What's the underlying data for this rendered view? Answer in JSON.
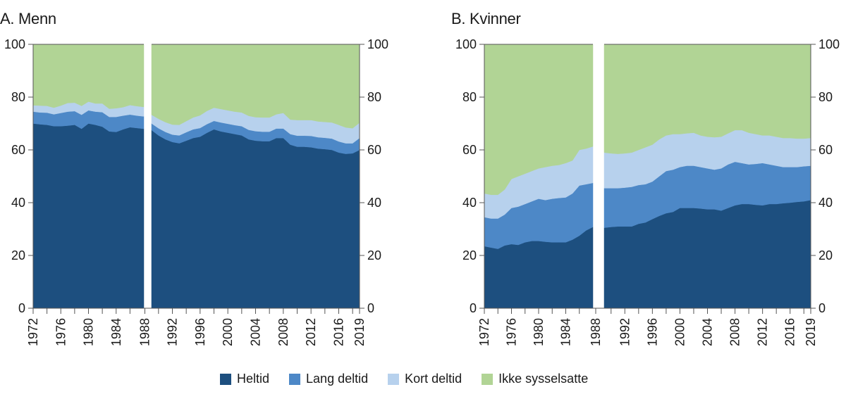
{
  "chart_data": [
    {
      "type": "area",
      "stacked": true,
      "title": "A. Menn",
      "xlabel": "",
      "ylabel": "",
      "ylim": [
        0,
        100
      ],
      "yticks": [
        0,
        20,
        40,
        60,
        80,
        100
      ],
      "xticks": [
        "1972",
        "1976",
        "1980",
        "1984",
        "1988",
        "1992",
        "1996",
        "2000",
        "2004",
        "2008",
        "2012",
        "2016",
        "2019"
      ],
      "xrange": [
        1972,
        2019
      ],
      "break_at": 1988,
      "grid": false,
      "segments": [
        {
          "x": [
            1972,
            1973,
            1974,
            1975,
            1976,
            1977,
            1978,
            1979,
            1980,
            1981,
            1982,
            1983,
            1984,
            1985,
            1986,
            1987,
            1988
          ],
          "series": [
            {
              "name": "Heltid",
              "values": [
                70,
                69.7,
                69.5,
                69,
                69,
                69.2,
                69.5,
                68,
                70,
                69.5,
                68.8,
                67,
                66.8,
                67.8,
                68.6,
                68.3,
                68
              ]
            },
            {
              "name": "Lang deltid",
              "values": [
                4.5,
                4.5,
                4.6,
                4.5,
                5,
                5.3,
                5.2,
                5.3,
                5,
                5,
                5.5,
                5.5,
                5.7,
                5.2,
                4.8,
                4.7,
                4.7
              ]
            },
            {
              "name": "Kort deltid",
              "values": [
                2.4,
                2.6,
                2.6,
                2.5,
                2.8,
                3.3,
                3.2,
                3.4,
                3.3,
                3.1,
                3.3,
                3.1,
                3.3,
                3.2,
                3.6,
                3.6,
                3.6
              ]
            },
            {
              "name": "Ikke sysselsatte",
              "values": [
                23.1,
                23.2,
                23.3,
                24,
                23.2,
                22.2,
                22.1,
                23.3,
                21.7,
                22.4,
                22.4,
                24.4,
                24.2,
                23.8,
                23,
                23.4,
                23.7
              ]
            }
          ]
        },
        {
          "x": [
            1989,
            1990,
            1991,
            1992,
            1993,
            1994,
            1995,
            1996,
            1997,
            1998,
            1999,
            2000,
            2001,
            2002,
            2003,
            2004,
            2005,
            2006,
            2007,
            2008,
            2009,
            2010,
            2011,
            2012,
            2013,
            2014,
            2015,
            2016,
            2017,
            2018,
            2019
          ],
          "series": [
            {
              "name": "Heltid",
              "values": [
                67.5,
                65.5,
                64,
                63,
                62.5,
                63.5,
                64.5,
                65,
                66.5,
                67.8,
                67,
                66.5,
                66,
                65.5,
                64,
                63.5,
                63.3,
                63.3,
                64.5,
                64.5,
                62,
                61.2,
                61.2,
                61,
                60.5,
                60.3,
                60,
                59,
                58.5,
                58.7,
                60
              ]
            },
            {
              "name": "Lang deltid",
              "values": [
                2.5,
                2.7,
                2.8,
                2.8,
                3,
                3.2,
                3.3,
                3.3,
                3.3,
                3.2,
                3.4,
                3.4,
                3.4,
                3.5,
                3.6,
                3.6,
                3.6,
                3.6,
                3.6,
                3.6,
                4,
                4.2,
                4.2,
                4.3,
                4.3,
                4.3,
                4.3,
                4.2,
                4,
                3.8,
                4.5
              ]
            },
            {
              "name": "Kort deltid",
              "values": [
                3.3,
                3.6,
                3.7,
                3.8,
                4,
                4.2,
                4.5,
                4.8,
                5,
                5,
                5.1,
                5.1,
                5.1,
                5.2,
                5.3,
                5.3,
                5.4,
                5.4,
                5.4,
                5.9,
                5.5,
                5.9,
                5.9,
                6,
                6,
                6,
                6.1,
                6.3,
                6,
                5.7,
                5.8
              ]
            },
            {
              "name": "Ikke sysselsatte",
              "values": [
                26.7,
                28.2,
                29.5,
                30.4,
                30.5,
                29.1,
                27.7,
                26.9,
                25.2,
                24,
                24.5,
                25,
                25.5,
                25.8,
                27.1,
                27.6,
                27.7,
                27.7,
                26.5,
                26,
                28.5,
                28.7,
                28.7,
                28.7,
                29.2,
                29.4,
                29.6,
                30.5,
                31.5,
                31.8,
                29.7
              ]
            }
          ]
        }
      ]
    },
    {
      "type": "area",
      "stacked": true,
      "title": "B. Kvinner",
      "xlabel": "",
      "ylabel": "",
      "ylim": [
        0,
        100
      ],
      "yticks": [
        0,
        20,
        40,
        60,
        80,
        100
      ],
      "xticks": [
        "1972",
        "1976",
        "1980",
        "1984",
        "1988",
        "1992",
        "1996",
        "2000",
        "2004",
        "2008",
        "2012",
        "2016",
        "2019"
      ],
      "xrange": [
        1972,
        2019
      ],
      "break_at": 1988,
      "grid": false,
      "segments": [
        {
          "x": [
            1972,
            1973,
            1974,
            1975,
            1976,
            1977,
            1978,
            1979,
            1980,
            1981,
            1982,
            1983,
            1984,
            1985,
            1986,
            1987,
            1988
          ],
          "series": [
            {
              "name": "Heltid",
              "values": [
                23.5,
                23,
                22.5,
                23.8,
                24.3,
                24,
                25,
                25.5,
                25.5,
                25.2,
                25,
                25,
                25,
                26,
                27.5,
                29.5,
                30.8
              ]
            },
            {
              "name": "Lang deltid",
              "values": [
                11,
                11,
                11.5,
                11.7,
                13.7,
                14.5,
                14.5,
                15,
                16,
                15.8,
                16.5,
                16.8,
                17,
                17.5,
                19,
                17.5,
                16.7
              ]
            },
            {
              "name": "Kort deltid",
              "values": [
                9,
                9,
                9,
                9.5,
                11,
                11.5,
                11.5,
                11.5,
                11.5,
                12.5,
                12.5,
                12.5,
                13,
                12.5,
                13.5,
                13.5,
                13.8
              ]
            },
            {
              "name": "Ikke sysselsatte",
              "values": [
                56.5,
                57,
                57,
                55,
                51,
                50,
                49,
                48,
                48,
                46.5,
                46,
                45.7,
                45,
                44,
                40,
                39.5,
                38.7
              ]
            }
          ]
        },
        {
          "x": [
            1989,
            1990,
            1991,
            1992,
            1993,
            1994,
            1995,
            1996,
            1997,
            1998,
            1999,
            2000,
            2001,
            2002,
            2003,
            2004,
            2005,
            2006,
            2007,
            2008,
            2009,
            2010,
            2011,
            2012,
            2013,
            2014,
            2015,
            2016,
            2017,
            2018,
            2019
          ],
          "series": [
            {
              "name": "Heltid",
              "values": [
                30.5,
                30.8,
                31,
                31,
                31,
                32,
                32.5,
                33.8,
                35,
                36,
                36.5,
                38,
                38,
                38,
                37.8,
                37.5,
                37.5,
                37,
                38,
                39,
                39.5,
                39.5,
                39.2,
                39,
                39.5,
                39.5,
                39.8,
                40,
                40.3,
                40.5,
                41
              ]
            },
            {
              "name": "Lang deltid",
              "values": [
                15,
                14.7,
                14.5,
                14.7,
                15,
                14.7,
                14.5,
                14.2,
                15,
                16,
                16,
                15.5,
                16,
                16,
                15.7,
                15.5,
                15,
                16,
                16.5,
                16.5,
                15.5,
                15,
                15.5,
                16,
                15,
                14.5,
                13.7,
                13.5,
                13.2,
                13.3,
                13
              ]
            },
            {
              "name": "Kort deltid",
              "values": [
                13.5,
                13.2,
                13,
                13,
                13,
                13.3,
                14,
                14,
                14,
                13.5,
                13.5,
                12.5,
                12.3,
                12.5,
                12,
                12,
                12.3,
                12,
                11.8,
                12,
                12.5,
                12,
                11.3,
                10.5,
                11,
                11,
                11,
                11,
                10.8,
                10.5,
                10.5
              ]
            },
            {
              "name": "Ikke sysselsatte",
              "values": [
                41,
                41.3,
                41.5,
                41.3,
                41,
                40,
                39,
                38,
                36,
                34.5,
                34,
                34,
                33.7,
                33.5,
                34.5,
                35,
                35.2,
                35,
                33.7,
                32.5,
                32.5,
                33.5,
                34,
                34.5,
                34.5,
                35,
                35.5,
                35.5,
                35.7,
                35.7,
                35.5
              ]
            }
          ]
        }
      ]
    }
  ],
  "legend": [
    {
      "label": "Heltid",
      "color": "#1d4f7f"
    },
    {
      "label": "Lang deltid",
      "color": "#4d88c7"
    },
    {
      "label": "Kort deltid",
      "color": "#b7d1ed"
    },
    {
      "label": "Ikke sysselsatte",
      "color": "#b1d495"
    }
  ],
  "colors": {
    "Heltid": "#1d4f7f",
    "Lang deltid": "#4d88c7",
    "Kort deltid": "#b7d1ed",
    "Ikke sysselsatte": "#b1d495",
    "axis": "#555555"
  }
}
